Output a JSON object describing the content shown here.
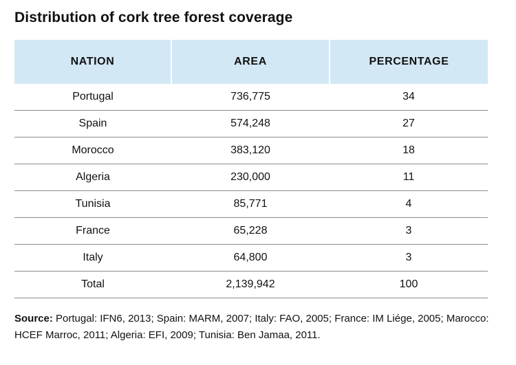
{
  "chart_data": {
    "type": "table",
    "title": "Distribution of cork tree forest coverage",
    "columns": [
      "NATION",
      "AREA",
      "PERCENTAGE"
    ],
    "rows": [
      [
        "Portugal",
        "736,775",
        "34"
      ],
      [
        "Spain",
        "574,248",
        "27"
      ],
      [
        "Morocco",
        "383,120",
        "18"
      ],
      [
        "Algeria",
        "230,000",
        "11"
      ],
      [
        "Tunisia",
        "85,771",
        "4"
      ],
      [
        "France",
        "65,228",
        "3"
      ],
      [
        "Italy",
        "64,800",
        "3"
      ],
      [
        "Total",
        "2,139,942",
        "100"
      ]
    ],
    "source_label": "Source:",
    "source_text": " Portugal: IFN6, 2013; Spain: MARM, 2007; Italy: FAO, 2005; France: IM Liége, 2005; Marocco: HCEF Marroc, 2011; Algeria: EFI, 2009; Tunisia: Ben Jamaa, 2011.",
    "colors": {
      "header_bg": "#d3e8f5",
      "row_rule": "#8a8a8a"
    }
  }
}
